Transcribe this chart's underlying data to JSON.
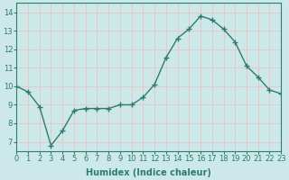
{
  "x": [
    0,
    1,
    2,
    3,
    4,
    5,
    6,
    7,
    8,
    9,
    10,
    11,
    12,
    13,
    14,
    15,
    16,
    17,
    18,
    19,
    20,
    21,
    22,
    23
  ],
  "y": [
    10.0,
    9.7,
    8.9,
    6.8,
    7.6,
    8.7,
    8.8,
    8.8,
    8.8,
    9.0,
    9.0,
    9.4,
    10.1,
    11.55,
    12.6,
    13.1,
    13.8,
    13.6,
    13.1,
    12.4,
    11.1,
    10.5,
    9.8,
    9.6
  ],
  "xlim": [
    0,
    23
  ],
  "ylim": [
    6.5,
    14.5
  ],
  "yticks": [
    7,
    8,
    9,
    10,
    11,
    12,
    13,
    14
  ],
  "xticks": [
    0,
    1,
    2,
    3,
    4,
    5,
    6,
    7,
    8,
    9,
    10,
    11,
    12,
    13,
    14,
    15,
    16,
    17,
    18,
    19,
    20,
    21,
    22,
    23
  ],
  "xlabel": "Humidex (Indice chaleur)",
  "line_color": "#2d7d6e",
  "marker": "+",
  "marker_color": "#2d7d6e",
  "bg_color": "#cce8e8",
  "grid_color": "#e8c8c8",
  "tick_color": "#2d7d6e",
  "label_color": "#2d7d6e",
  "xlabel_color": "#2d7d6e",
  "xlabel_fontsize": 7,
  "tick_fontsize": 6,
  "linewidth": 1.0,
  "markersize": 4.0
}
